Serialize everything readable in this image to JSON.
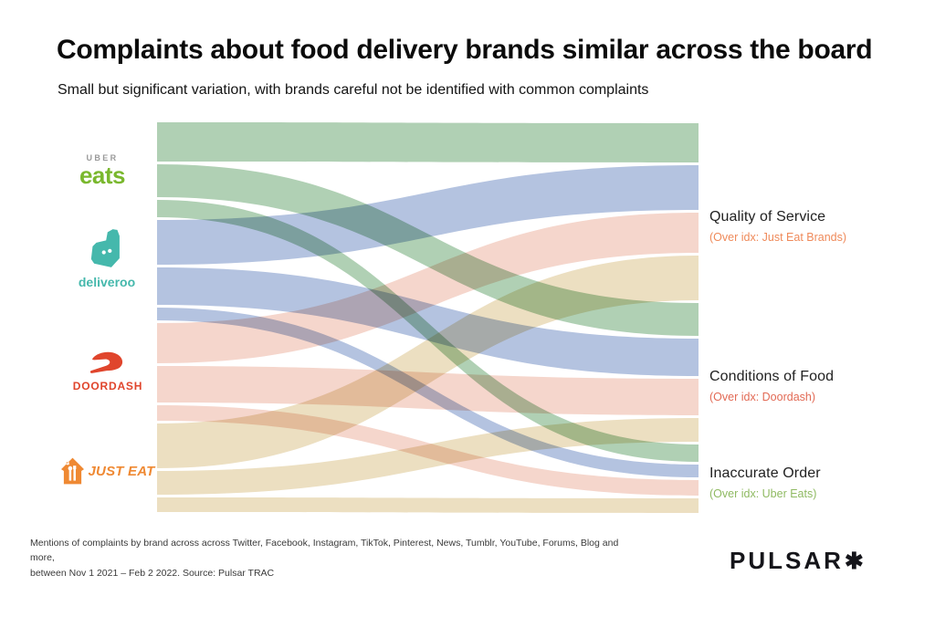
{
  "header": {
    "title": "Complaints about food delivery brands similar across the board",
    "subtitle": "Small but significant variation, with brands careful not be identified with common complaints"
  },
  "brands": [
    {
      "name": "Uber Eats",
      "logo_top": "UBER",
      "logo_top_color": "#9a9a9a",
      "logo_text": "eats",
      "color": "#7ab82e"
    },
    {
      "name": "Deliveroo",
      "logo_text": "deliveroo",
      "color": "#45b8ac"
    },
    {
      "name": "DoorDash",
      "logo_text": "DOORDASH",
      "color": "#e0452c"
    },
    {
      "name": "Just Eat",
      "logo_text": "JUST EAT",
      "color": "#ef8933"
    }
  ],
  "categories": [
    {
      "label": "Quality of Service",
      "note": "(Over idx: Just Eat Brands)",
      "note_color": "#ef8a5a"
    },
    {
      "label": "Conditions of Food",
      "note": "(Over idx: Doordash)",
      "note_color": "#e26a55"
    },
    {
      "label": "Inaccurate Order",
      "note": "(Over idx: Uber Eats)",
      "note_color": "#8fba62"
    }
  ],
  "chart_data": {
    "type": "sankey",
    "title": "Complaints about food delivery brands similar across the board",
    "sources": [
      "Uber Eats",
      "Deliveroo",
      "DoorDash",
      "Just Eat"
    ],
    "targets": [
      "Quality of Service",
      "Conditions of Food",
      "Inaccurate Order"
    ],
    "value_unit": "relative share of brand complaint mentions (band thickness)",
    "ribbon_colors": {
      "Uber Eats": "#b0d0b4",
      "Deliveroo": "#b4c3e0",
      "DoorDash": "#f5d6cc",
      "Just Eat": "#ecdfc1"
    },
    "flows": [
      {
        "source": "Uber Eats",
        "target": "Quality of Service",
        "value": 43
      },
      {
        "source": "Uber Eats",
        "target": "Conditions of Food",
        "value": 36
      },
      {
        "source": "Uber Eats",
        "target": "Inaccurate Order",
        "value": 19
      },
      {
        "source": "Deliveroo",
        "target": "Quality of Service",
        "value": 49
      },
      {
        "source": "Deliveroo",
        "target": "Conditions of Food",
        "value": 41
      },
      {
        "source": "Deliveroo",
        "target": "Inaccurate Order",
        "value": 14
      },
      {
        "source": "DoorDash",
        "target": "Quality of Service",
        "value": 44
      },
      {
        "source": "DoorDash",
        "target": "Conditions of Food",
        "value": 40
      },
      {
        "source": "DoorDash",
        "target": "Inaccurate Order",
        "value": 17
      },
      {
        "source": "Just Eat",
        "target": "Quality of Service",
        "value": 49
      },
      {
        "source": "Just Eat",
        "target": "Conditions of Food",
        "value": 26
      },
      {
        "source": "Just Eat",
        "target": "Inaccurate Order",
        "value": 16
      }
    ]
  },
  "footer": {
    "line1": "Mentions of complaints by brand across across Twitter, Facebook, Instagram, TikTok, Pinterest, News, Tumblr, YouTube, Forums, Blog and more,",
    "line2": "between Nov 1 2021 – Feb 2 2022. Source: Pulsar TRAC"
  },
  "logo": {
    "text": "PULSAR",
    "mark": "✱"
  }
}
